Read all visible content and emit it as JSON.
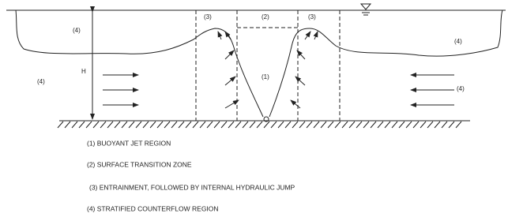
{
  "labels": [
    "(4)",
    "H",
    "(4)",
    "(3)",
    "(2)",
    "(3)",
    "(1)",
    "(4)",
    "(4)"
  ],
  "legend": [
    "(1) BUOYANT JET REGION",
    "(2) SURFACE TRANSITION ZONE",
    "(3) ENTRAINMENT, FOLLOWED BY INTERNAL HYDRAULIC JUMP",
    "(4) STRATIFIED COUNTERFLOW REGION"
  ]
}
